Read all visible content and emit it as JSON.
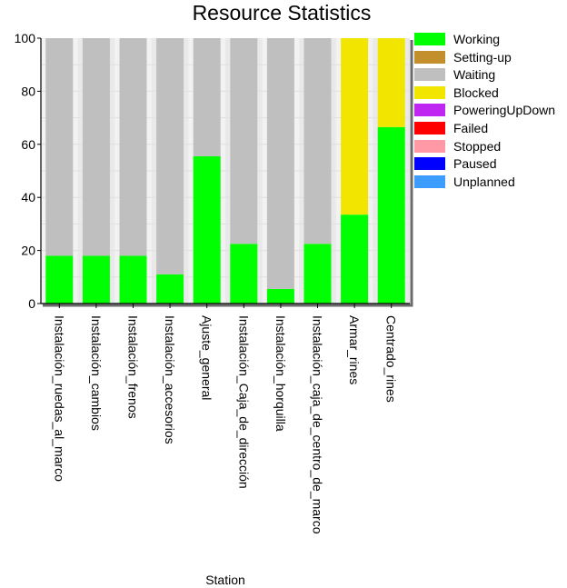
{
  "chart_data": {
    "type": "bar",
    "stacked": true,
    "title": "Resource Statistics",
    "xlabel": "Station",
    "ylabel": "",
    "ylim": [
      0,
      100
    ],
    "yticks": [
      0,
      20,
      40,
      60,
      80,
      100
    ],
    "grid": true,
    "legend_position": "right",
    "categories": [
      "Instalación_ruedas_al_marco",
      "Instalación_cambios",
      "Instalación_frenos",
      "Instalación_accesorios",
      "Ajuste_general",
      "Instalación_Caja_de_dirección",
      "Instalación_horquilla",
      "Instalación_caja_de_centro_de_marco",
      "Armar_rines",
      "Centrado_rines"
    ],
    "series": [
      {
        "name": "Working",
        "color": "#00ff00",
        "values": [
          18,
          18,
          18,
          11,
          55.5,
          22.5,
          5.5,
          22.5,
          33.5,
          66.5
        ]
      },
      {
        "name": "Setting-up",
        "color": "#c28f2c",
        "values": [
          0,
          0,
          0,
          0,
          0,
          0,
          0,
          0,
          0,
          0
        ]
      },
      {
        "name": "Waiting",
        "color": "#bfbfbf",
        "values": [
          82,
          82,
          82,
          89,
          44.5,
          77.5,
          94.5,
          77.5,
          0,
          0
        ]
      },
      {
        "name": "Blocked",
        "color": "#f2e600",
        "values": [
          0,
          0,
          0,
          0,
          0,
          0,
          0,
          0,
          66.5,
          33.5
        ]
      },
      {
        "name": "PoweringUpDown",
        "color": "#bf26f2",
        "values": [
          0,
          0,
          0,
          0,
          0,
          0,
          0,
          0,
          0,
          0
        ]
      },
      {
        "name": "Failed",
        "color": "#ff0000",
        "values": [
          0,
          0,
          0,
          0,
          0,
          0,
          0,
          0,
          0,
          0
        ]
      },
      {
        "name": "Stopped",
        "color": "#ff99a6",
        "values": [
          0,
          0,
          0,
          0,
          0,
          0,
          0,
          0,
          0,
          0
        ]
      },
      {
        "name": "Paused",
        "color": "#0000ff",
        "values": [
          0,
          0,
          0,
          0,
          0,
          0,
          0,
          0,
          0,
          0
        ]
      },
      {
        "name": "Unplanned",
        "color": "#3d9cff",
        "values": [
          0,
          0,
          0,
          0,
          0,
          0,
          0,
          0,
          0,
          0
        ]
      }
    ]
  }
}
